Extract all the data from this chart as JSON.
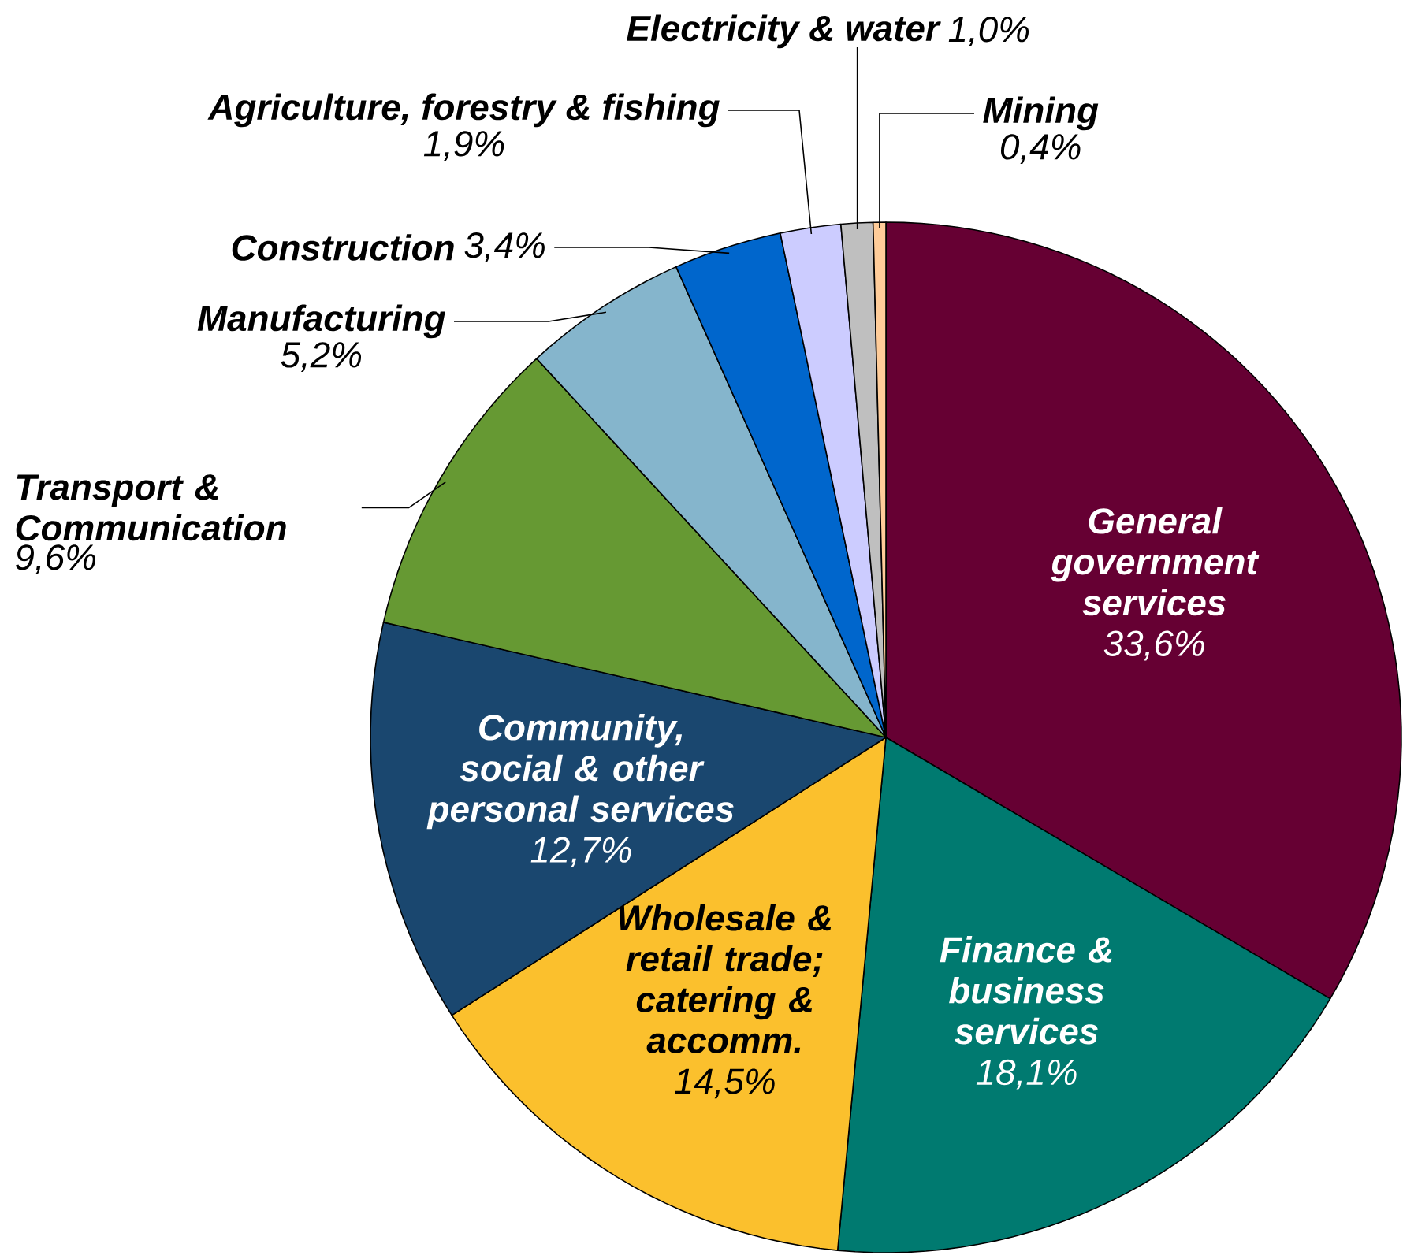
{
  "chart_data": {
    "type": "pie",
    "categories": [
      "General government services",
      "Finance & business services",
      "Wholesale & retail trade; catering & accomm.",
      "Community, social & other personal services",
      "Transport & Communication",
      "Manufacturing",
      "Construction",
      "Agriculture, forestry & fishing",
      "Electricity & water",
      "Mining"
    ],
    "values": [
      33.6,
      18.1,
      14.5,
      12.7,
      9.6,
      5.2,
      3.4,
      1.9,
      1.0,
      0.4
    ],
    "value_labels": [
      "33,6%",
      "18,1%",
      "14,5%",
      "12,7%",
      "9,6%",
      "5,2%",
      "3,4%",
      "1,9%",
      "1,0%",
      "0,4%"
    ],
    "colors": [
      "#660033",
      "#007a70",
      "#fbc02d",
      "#1a476f",
      "#669933",
      "#85b5cc",
      "#0066cc",
      "#ccccff",
      "#bfbfbf",
      "#ffcc99"
    ]
  }
}
